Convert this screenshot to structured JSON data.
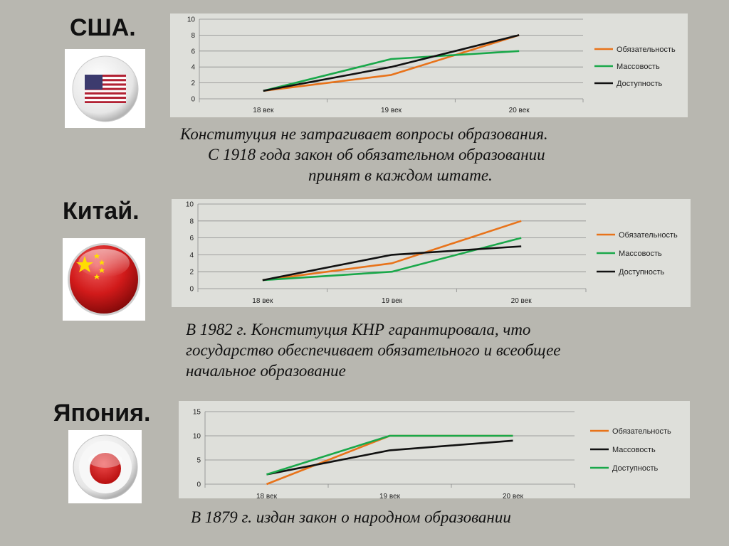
{
  "sections": [
    {
      "country": "США.",
      "flag_icon": "usa-flag-icon",
      "caption_lines": [
        "Конституция не затрагивает вопросы образования.",
        "С 1918 года закон об обязательном образовании",
        "принят в каждом штате."
      ]
    },
    {
      "country": "Китай.",
      "flag_icon": "china-flag-icon",
      "caption_lines": [
        "В 1982 г. Конституция КНР гарантировала, что",
        "государство обеспечивает обязательного и всеобщее",
        "начальное образование"
      ]
    },
    {
      "country": "Япония.",
      "flag_icon": "japan-flag-icon",
      "caption_lines": [
        "В 1879 г. издан закон о народном образовании"
      ]
    }
  ],
  "chart_data": [
    {
      "type": "line",
      "categories": [
        "18 век",
        "19 век",
        "20 век"
      ],
      "ylim": [
        0,
        10
      ],
      "yticks": [
        "0",
        "2",
        "4",
        "6",
        "8",
        "10"
      ],
      "grid": true,
      "legend_position": "right",
      "series": [
        {
          "name": "Обязательность",
          "color": "#e8731a",
          "values": [
            1,
            3,
            8
          ]
        },
        {
          "name": "Массовость",
          "color": "#1aa84a",
          "values": [
            1,
            5,
            6
          ]
        },
        {
          "name": "Доступность",
          "color": "#111111",
          "values": [
            1,
            4,
            8
          ]
        }
      ]
    },
    {
      "type": "line",
      "categories": [
        "18 век",
        "19 век",
        "20 век"
      ],
      "ylim": [
        0,
        10
      ],
      "yticks": [
        "0",
        "2",
        "4",
        "6",
        "8",
        "10"
      ],
      "grid": true,
      "legend_position": "right",
      "series": [
        {
          "name": "Обязательность",
          "color": "#e8731a",
          "values": [
            1,
            3,
            8
          ]
        },
        {
          "name": "Массовость",
          "color": "#1aa84a",
          "values": [
            1,
            2,
            6
          ]
        },
        {
          "name": "Доступность",
          "color": "#111111",
          "values": [
            1,
            4,
            5
          ]
        }
      ]
    },
    {
      "type": "line",
      "categories": [
        "18 век",
        "19 век",
        "20 век"
      ],
      "ylim": [
        0,
        15
      ],
      "yticks": [
        "0",
        "5",
        "10",
        "15"
      ],
      "grid": true,
      "legend_position": "right",
      "series": [
        {
          "name": "Обязательность",
          "color": "#e8731a",
          "values": [
            0,
            10,
            10
          ]
        },
        {
          "name": "Массовость",
          "color": "#111111",
          "values": [
            2,
            7,
            9
          ]
        },
        {
          "name": "Доступность",
          "color": "#1aa84a",
          "values": [
            2,
            10,
            10
          ]
        }
      ]
    }
  ]
}
